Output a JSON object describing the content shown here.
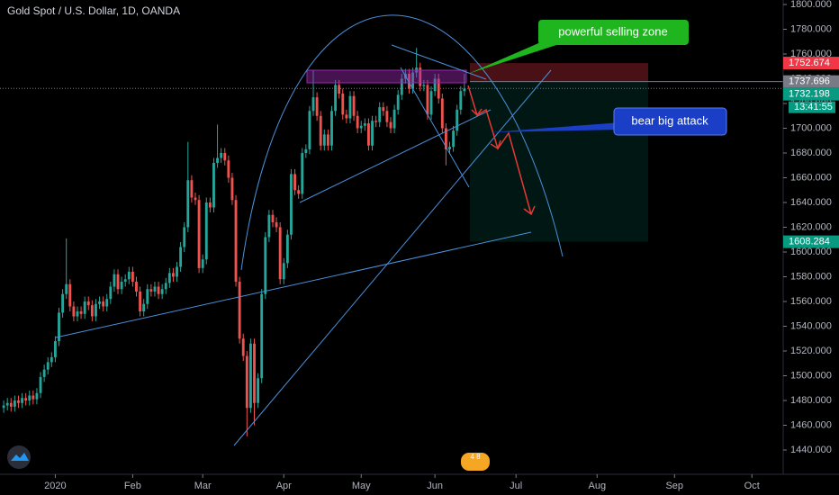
{
  "chart_data": {
    "type": "candlestick",
    "title": "Gold Spot / U.S. Dollar, 1D, OANDA",
    "up_color": "#26a69a",
    "down_color": "#ef5350",
    "open": [
      1474,
      1476,
      1478,
      1475,
      1480,
      1478,
      1482,
      1480,
      1484,
      1481,
      1486,
      1499,
      1505,
      1511,
      1515,
      1528,
      1551,
      1566,
      1574,
      1556,
      1548,
      1552,
      1550,
      1560,
      1557,
      1548,
      1558,
      1560,
      1556,
      1562,
      1572,
      1582,
      1570,
      1576,
      1578,
      1584,
      1576,
      1568,
      1552,
      1558,
      1570,
      1568,
      1572,
      1566,
      1570,
      1575,
      1583,
      1580,
      1588,
      1604,
      1620,
      1658,
      1644,
      1642,
      1587,
      1594,
      1640,
      1636,
      1672,
      1676,
      1680,
      1674,
      1660,
      1642,
      1576,
      1530,
      1516,
      1474,
      1526,
      1478,
      1498,
      1566,
      1612,
      1630,
      1624,
      1620,
      1578,
      1591,
      1614,
      1663,
      1650,
      1647,
      1680,
      1683,
      1714,
      1725,
      1710,
      1686,
      1695,
      1686,
      1714,
      1735,
      1728,
      1711,
      1708,
      1726,
      1710,
      1700,
      1702,
      1704,
      1686,
      1706,
      1705,
      1717,
      1714,
      1705,
      1700,
      1715,
      1727,
      1740,
      1744,
      1732,
      1745,
      1749,
      1734,
      1735,
      1711,
      1730,
      1740,
      1724,
      1700,
      1683,
      1685,
      1698,
      1715,
      1730
    ],
    "high": [
      1480,
      1482,
      1482,
      1484,
      1484,
      1486,
      1486,
      1488,
      1488,
      1490,
      1503,
      1509,
      1515,
      1519,
      1532,
      1555,
      1570,
      1611,
      1578,
      1560,
      1556,
      1556,
      1564,
      1564,
      1561,
      1562,
      1564,
      1564,
      1566,
      1576,
      1586,
      1586,
      1580,
      1582,
      1588,
      1588,
      1580,
      1572,
      1562,
      1574,
      1574,
      1576,
      1576,
      1574,
      1579,
      1587,
      1587,
      1592,
      1608,
      1624,
      1689,
      1662,
      1648,
      1646,
      1598,
      1644,
      1644,
      1676,
      1703,
      1684,
      1684,
      1678,
      1664,
      1646,
      1580,
      1534,
      1520,
      1530,
      1530,
      1502,
      1570,
      1616,
      1634,
      1634,
      1628,
      1624,
      1595,
      1618,
      1667,
      1667,
      1654,
      1684,
      1687,
      1718,
      1747,
      1729,
      1714,
      1699,
      1699,
      1718,
      1739,
      1739,
      1732,
      1715,
      1730,
      1730,
      1714,
      1706,
      1708,
      1708,
      1710,
      1710,
      1721,
      1721,
      1718,
      1709,
      1719,
      1731,
      1744,
      1748,
      1748,
      1749,
      1765,
      1753,
      1739,
      1739,
      1734,
      1744,
      1744,
      1728,
      1704,
      1689,
      1702,
      1719,
      1734,
      1744
    ],
    "low": [
      1470,
      1472,
      1471,
      1471,
      1474,
      1474,
      1476,
      1476,
      1477,
      1477,
      1482,
      1495,
      1501,
      1507,
      1511,
      1524,
      1547,
      1562,
      1552,
      1544,
      1544,
      1546,
      1546,
      1553,
      1544,
      1544,
      1554,
      1552,
      1552,
      1558,
      1568,
      1566,
      1566,
      1572,
      1574,
      1572,
      1564,
      1548,
      1548,
      1554,
      1564,
      1564,
      1562,
      1562,
      1566,
      1571,
      1576,
      1576,
      1584,
      1600,
      1616,
      1640,
      1638,
      1583,
      1583,
      1590,
      1632,
      1632,
      1668,
      1672,
      1670,
      1656,
      1638,
      1572,
      1526,
      1512,
      1451,
      1470,
      1460,
      1474,
      1494,
      1562,
      1608,
      1620,
      1616,
      1574,
      1574,
      1587,
      1610,
      1646,
      1643,
      1643,
      1676,
      1679,
      1710,
      1706,
      1682,
      1682,
      1682,
      1682,
      1710,
      1724,
      1707,
      1704,
      1704,
      1706,
      1696,
      1696,
      1698,
      1682,
      1682,
      1701,
      1701,
      1710,
      1701,
      1696,
      1696,
      1711,
      1723,
      1736,
      1728,
      1728,
      1741,
      1730,
      1730,
      1707,
      1707,
      1726,
      1720,
      1696,
      1670,
      1679,
      1681,
      1694,
      1711,
      1726
    ],
    "close": [
      1476,
      1478,
      1475,
      1480,
      1478,
      1482,
      1480,
      1484,
      1481,
      1486,
      1499,
      1505,
      1511,
      1515,
      1528,
      1551,
      1566,
      1574,
      1556,
      1548,
      1552,
      1550,
      1560,
      1557,
      1548,
      1558,
      1560,
      1556,
      1562,
      1572,
      1582,
      1570,
      1576,
      1578,
      1584,
      1576,
      1568,
      1552,
      1558,
      1570,
      1568,
      1572,
      1566,
      1570,
      1575,
      1583,
      1580,
      1588,
      1604,
      1620,
      1658,
      1644,
      1642,
      1587,
      1594,
      1640,
      1636,
      1672,
      1676,
      1680,
      1674,
      1660,
      1642,
      1576,
      1530,
      1516,
      1474,
      1526,
      1478,
      1498,
      1566,
      1612,
      1630,
      1624,
      1620,
      1578,
      1591,
      1614,
      1663,
      1650,
      1647,
      1680,
      1683,
      1714,
      1725,
      1710,
      1686,
      1695,
      1686,
      1714,
      1735,
      1728,
      1711,
      1708,
      1726,
      1710,
      1700,
      1702,
      1704,
      1686,
      1706,
      1705,
      1717,
      1714,
      1705,
      1700,
      1715,
      1727,
      1740,
      1744,
      1732,
      1745,
      1749,
      1734,
      1735,
      1711,
      1730,
      1740,
      1724,
      1700,
      1683,
      1685,
      1698,
      1715,
      1730,
      1732
    ],
    "xlim": [
      -1,
      211
    ],
    "ylim": [
      1420,
      1800
    ],
    "xticks": [
      {
        "value": 14,
        "label": "2020"
      },
      {
        "value": 35,
        "label": "Feb"
      },
      {
        "value": 54,
        "label": "Mar"
      },
      {
        "value": 76,
        "label": "Apr"
      },
      {
        "value": 97,
        "label": "May"
      },
      {
        "value": 117,
        "label": "Jun"
      },
      {
        "value": 139,
        "label": "Jul"
      },
      {
        "value": 161,
        "label": "Aug"
      },
      {
        "value": 182,
        "label": "Sep"
      },
      {
        "value": 203,
        "label": "Oct"
      }
    ],
    "yticks": [
      {
        "value": 1440,
        "label": "1440.000"
      },
      {
        "value": 1460,
        "label": "1460.000"
      },
      {
        "value": 1480,
        "label": "1480.000"
      },
      {
        "value": 1500,
        "label": "1500.000"
      },
      {
        "value": 1520,
        "label": "1520.000"
      },
      {
        "value": 1540,
        "label": "1540.000"
      },
      {
        "value": 1560,
        "label": "1560.000"
      },
      {
        "value": 1580,
        "label": "1580.000"
      },
      {
        "value": 1600,
        "label": "1600.000"
      },
      {
        "value": 1620,
        "label": "1620.000"
      },
      {
        "value": 1640,
        "label": "1640.000"
      },
      {
        "value": 1660,
        "label": "1660.000"
      },
      {
        "value": 1680,
        "label": "1680.000"
      },
      {
        "value": 1700,
        "label": "1700.000"
      },
      {
        "value": 1720,
        "label": "1720.000"
      },
      {
        "value": 1740,
        "label": "1740.000"
      },
      {
        "value": 1760,
        "label": "1760.000"
      },
      {
        "value": 1780,
        "label": "1780.000"
      },
      {
        "value": 1800,
        "label": "1800.000"
      }
    ],
    "stop_loss": {
      "value": 1752.674,
      "color": "#f23645"
    },
    "entry": {
      "value": 1737.696,
      "color": "#787b86"
    },
    "last_price": {
      "value": 1732.198,
      "color": "#089981"
    },
    "countdown": "13:41:55",
    "take_profit": {
      "value": 1608.284,
      "color": "#089981"
    },
    "annotations": [
      "powerful selling zone",
      "bear big attack"
    ],
    "events_badge": "4 8"
  }
}
